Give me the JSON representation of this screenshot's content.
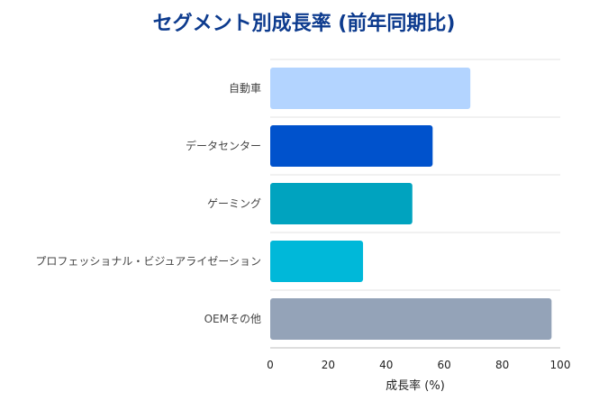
{
  "chart_data": {
    "type": "bar",
    "orientation": "horizontal",
    "title": "セグメント別成長率 (前年同期比)",
    "xlabel": "成長率 (%)",
    "ylabel": "",
    "xlim": [
      0,
      100
    ],
    "xticks": [
      0,
      20,
      40,
      60,
      80,
      100
    ],
    "grid": "horizontal category separators",
    "categories": [
      "自動車",
      "データセンター",
      "ゲーミング",
      "プロフェッショナル・ビジュアライゼーション",
      "OEMその他"
    ],
    "values": [
      69,
      56,
      49,
      32,
      97
    ],
    "colors": [
      "#b3d4ff",
      "#0052cc",
      "#00a3bf",
      "#00b8d9",
      "#94a3b8"
    ]
  }
}
